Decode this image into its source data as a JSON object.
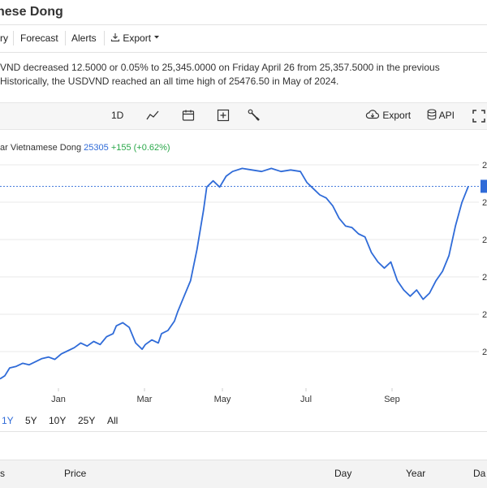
{
  "page": {
    "title": "nese Dong"
  },
  "nav": {
    "items": [
      {
        "label": "ry"
      },
      {
        "label": "Forecast"
      },
      {
        "label": "Alerts"
      },
      {
        "label": "Export"
      }
    ]
  },
  "summary": {
    "line1": "VND decreased 12.5000 or 0.05% to 25,345.0000 on Friday April 26 from 25,357.5000 in the previous",
    "line2": "Historically, the USDVND reached an all time high of 25476.50 in May of 2024."
  },
  "toolbar": {
    "interval": "1D",
    "export_label": "Export",
    "api_label": "API"
  },
  "legend": {
    "name": "ar Vietnamese Dong",
    "value": "25305",
    "change": "+155 (+0.62%)"
  },
  "range": {
    "options": [
      "1Y",
      "5Y",
      "10Y",
      "25Y",
      "All"
    ],
    "active": "1Y"
  },
  "table": {
    "headers": [
      "s",
      "Price",
      "Day",
      "Year",
      "Da"
    ]
  },
  "colors": {
    "line": "#2f6bd8",
    "up": "#2aa84a"
  },
  "chart_data": {
    "type": "line",
    "title": "",
    "x_tick_labels": [
      "Jan",
      "Mar",
      "May",
      "Jul",
      "Sep"
    ],
    "y_right_tick_labels": [
      "2",
      "2",
      "2",
      "2",
      "2",
      "2"
    ],
    "last_value": 25305,
    "series": [
      {
        "values": [
          [
            0,
            24070
          ],
          [
            3,
            24090
          ],
          [
            6,
            24140
          ],
          [
            10,
            24150
          ],
          [
            14,
            24170
          ],
          [
            18,
            24160
          ],
          [
            22,
            24180
          ],
          [
            26,
            24200
          ],
          [
            30,
            24210
          ],
          [
            34,
            24195
          ],
          [
            38,
            24230
          ],
          [
            42,
            24250
          ],
          [
            46,
            24270
          ],
          [
            50,
            24300
          ],
          [
            54,
            24280
          ],
          [
            58,
            24310
          ],
          [
            62,
            24290
          ],
          [
            66,
            24340
          ],
          [
            70,
            24360
          ],
          [
            72,
            24410
          ],
          [
            76,
            24430
          ],
          [
            80,
            24400
          ],
          [
            84,
            24300
          ],
          [
            88,
            24260
          ],
          [
            90,
            24290
          ],
          [
            94,
            24320
          ],
          [
            98,
            24300
          ],
          [
            100,
            24360
          ],
          [
            104,
            24380
          ],
          [
            108,
            24440
          ],
          [
            110,
            24500
          ],
          [
            114,
            24600
          ],
          [
            118,
            24700
          ],
          [
            122,
            24900
          ],
          [
            126,
            25150
          ],
          [
            128,
            25300
          ],
          [
            132,
            25340
          ],
          [
            136,
            25300
          ],
          [
            140,
            25370
          ],
          [
            144,
            25400
          ],
          [
            150,
            25420
          ],
          [
            156,
            25410
          ],
          [
            162,
            25400
          ],
          [
            168,
            25420
          ],
          [
            174,
            25400
          ],
          [
            180,
            25410
          ],
          [
            186,
            25400
          ],
          [
            190,
            25330
          ],
          [
            194,
            25290
          ],
          [
            198,
            25250
          ],
          [
            202,
            25230
          ],
          [
            206,
            25180
          ],
          [
            210,
            25100
          ],
          [
            214,
            25050
          ],
          [
            218,
            25040
          ],
          [
            222,
            25000
          ],
          [
            226,
            24980
          ],
          [
            230,
            24880
          ],
          [
            234,
            24820
          ],
          [
            238,
            24780
          ],
          [
            242,
            24820
          ],
          [
            246,
            24700
          ],
          [
            250,
            24640
          ],
          [
            254,
            24600
          ],
          [
            258,
            24640
          ],
          [
            262,
            24580
          ],
          [
            266,
            24620
          ],
          [
            270,
            24700
          ],
          [
            274,
            24760
          ],
          [
            278,
            24860
          ],
          [
            282,
            25050
          ],
          [
            286,
            25200
          ],
          [
            290,
            25305
          ]
        ]
      }
    ],
    "reference_value": 25305
  }
}
